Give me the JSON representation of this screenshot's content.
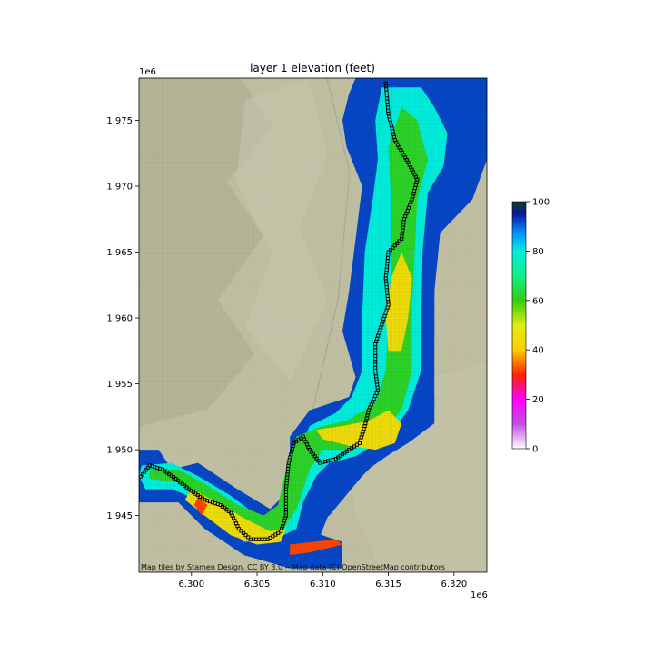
{
  "chart_data": {
    "type": "heatmap",
    "title": "layer 1 elevation (feet)",
    "x_offset_label": "1e6",
    "y_offset_label": "1e6",
    "xlim": [
      6.296,
      6.3225
    ],
    "ylim": [
      1.9407,
      1.9782
    ],
    "x_ticks": [
      {
        "value": 6.3,
        "label": "6.300"
      },
      {
        "value": 6.305,
        "label": "6.305"
      },
      {
        "value": 6.31,
        "label": "6.310"
      },
      {
        "value": 6.315,
        "label": "6.315"
      },
      {
        "value": 6.32,
        "label": "6.320"
      }
    ],
    "y_ticks": [
      {
        "value": 1.945,
        "label": "1.945"
      },
      {
        "value": 1.95,
        "label": "1.950"
      },
      {
        "value": 1.955,
        "label": "1.955"
      },
      {
        "value": 1.96,
        "label": "1.960"
      },
      {
        "value": 1.965,
        "label": "1.965"
      },
      {
        "value": 1.97,
        "label": "1.970"
      },
      {
        "value": 1.975,
        "label": "1.975"
      }
    ],
    "colorbar": {
      "range": [
        0,
        100
      ],
      "ticks": [
        {
          "value": 0,
          "label": "0"
        },
        {
          "value": 20,
          "label": "20"
        },
        {
          "value": 40,
          "label": "40"
        },
        {
          "value": 60,
          "label": "60"
        },
        {
          "value": 80,
          "label": "80"
        },
        {
          "value": 100,
          "label": "100"
        }
      ],
      "colormap_stops": [
        [
          0,
          "#ffffff"
        ],
        [
          10,
          "#c24fe6"
        ],
        [
          20,
          "#ff00ff"
        ],
        [
          30,
          "#ff2200"
        ],
        [
          40,
          "#ffcc00"
        ],
        [
          50,
          "#ddee11"
        ],
        [
          60,
          "#33cc11"
        ],
        [
          70,
          "#11ee88"
        ],
        [
          80,
          "#00eedd"
        ],
        [
          88,
          "#0088ff"
        ],
        [
          95,
          "#0b169e"
        ],
        [
          100,
          "#0b3d22"
        ]
      ]
    },
    "elevation_regions": [
      {
        "value": 92,
        "polygon": [
          [
            6.3134,
            1.9782
          ],
          [
            6.3171,
            1.9782
          ],
          [
            6.3171,
            1.9765
          ],
          [
            6.3208,
            1.9765
          ],
          [
            6.3208,
            1.974
          ],
          [
            6.3214,
            1.972
          ],
          [
            6.3195,
            1.971
          ],
          [
            6.3178,
            1.969
          ],
          [
            6.3185,
            1.968
          ],
          [
            6.3185,
            1.964
          ],
          [
            6.3178,
            1.963
          ],
          [
            6.3178,
            1.961
          ],
          [
            6.3185,
            1.954
          ],
          [
            6.3185,
            1.952
          ],
          [
            6.3165,
            1.9505
          ],
          [
            6.314,
            1.949
          ],
          [
            6.311,
            1.9485
          ],
          [
            6.31,
            1.947
          ],
          [
            6.3085,
            1.9455
          ],
          [
            6.3085,
            1.944
          ],
          [
            6.306,
            1.9432
          ],
          [
            6.304,
            1.943
          ],
          [
            6.301,
            1.9455
          ],
          [
            6.299,
            1.947
          ],
          [
            6.2975,
            1.9495
          ],
          [
            6.296,
            1.9495
          ],
          [
            6.296,
            1.946
          ],
          [
            6.299,
            1.946
          ],
          [
            6.301,
            1.944
          ],
          [
            6.304,
            1.942
          ],
          [
            6.3075,
            1.941
          ],
          [
            6.3115,
            1.941
          ],
          [
            6.3115,
            1.943
          ],
          [
            6.3085,
            1.944
          ],
          [
            6.3105,
            1.945
          ],
          [
            6.313,
            1.948
          ],
          [
            6.315,
            1.95
          ],
          [
            6.3175,
            1.9525
          ],
          [
            6.3185,
            1.9585
          ],
          [
            6.3185,
            1.966
          ],
          [
            6.3214,
            1.969
          ],
          [
            6.3225,
            1.972
          ],
          [
            6.3225,
            1.9782
          ]
        ]
      },
      {
        "value": 92,
        "polygon": [
          [
            6.3125,
            1.9782
          ],
          [
            6.321,
            1.9782
          ],
          [
            6.3225,
            1.974
          ],
          [
            6.3218,
            1.9712
          ],
          [
            6.3192,
            1.969
          ],
          [
            6.3185,
            1.962
          ],
          [
            6.3185,
            1.953
          ],
          [
            6.3163,
            1.9505
          ],
          [
            6.312,
            1.9475
          ],
          [
            6.3105,
            1.9452
          ],
          [
            6.309,
            1.9415
          ],
          [
            6.308,
            1.941
          ],
          [
            6.3065,
            1.943
          ],
          [
            6.3045,
            1.9432
          ],
          [
            6.3025,
            1.9445
          ],
          [
            6.3005,
            1.9465
          ],
          [
            6.299,
            1.9478
          ],
          [
            6.2965,
            1.9478
          ],
          [
            6.296,
            1.9468
          ],
          [
            6.296,
            1.95
          ],
          [
            6.2975,
            1.95
          ],
          [
            6.2985,
            1.9485
          ],
          [
            6.3005,
            1.949
          ],
          [
            6.3035,
            1.947
          ],
          [
            6.306,
            1.9455
          ],
          [
            6.3075,
            1.947
          ],
          [
            6.3075,
            1.951
          ],
          [
            6.309,
            1.953
          ],
          [
            6.312,
            1.954
          ],
          [
            6.3125,
            1.9555
          ],
          [
            6.3115,
            1.959
          ],
          [
            6.312,
            1.962
          ],
          [
            6.3125,
            1.966
          ],
          [
            6.313,
            1.97
          ],
          [
            6.3118,
            1.973
          ],
          [
            6.3115,
            1.975
          ],
          [
            6.312,
            1.977
          ]
        ]
      },
      {
        "value": 80,
        "polygon": [
          [
            6.3145,
            1.9775
          ],
          [
            6.3175,
            1.9775
          ],
          [
            6.3185,
            1.976
          ],
          [
            6.3195,
            1.974
          ],
          [
            6.3192,
            1.9715
          ],
          [
            6.318,
            1.9695
          ],
          [
            6.3176,
            1.965
          ],
          [
            6.3175,
            1.96
          ],
          [
            6.3175,
            1.956
          ],
          [
            6.3165,
            1.953
          ],
          [
            6.315,
            1.951
          ],
          [
            6.3125,
            1.9495
          ],
          [
            6.3105,
            1.949
          ],
          [
            6.3095,
            1.948
          ],
          [
            6.3085,
            1.946
          ],
          [
            6.308,
            1.944
          ],
          [
            6.306,
            1.943
          ],
          [
            6.304,
            1.9435
          ],
          [
            6.302,
            1.945
          ],
          [
            6.3005,
            1.9462
          ],
          [
            6.2985,
            1.947
          ],
          [
            6.2965,
            1.947
          ],
          [
            6.296,
            1.948
          ],
          [
            6.2962,
            1.9488
          ],
          [
            6.2985,
            1.949
          ],
          [
            6.3005,
            1.948
          ],
          [
            6.303,
            1.9465
          ],
          [
            6.305,
            1.945
          ],
          [
            6.307,
            1.9445
          ],
          [
            6.3078,
            1.946
          ],
          [
            6.3082,
            1.95
          ],
          [
            6.309,
            1.9518
          ],
          [
            6.311,
            1.9528
          ],
          [
            6.3122,
            1.954
          ],
          [
            6.313,
            1.956
          ],
          [
            6.313,
            1.96
          ],
          [
            6.3132,
            1.965
          ],
          [
            6.3138,
            1.969
          ],
          [
            6.3142,
            1.972
          ],
          [
            6.314,
            1.975
          ]
        ]
      },
      {
        "value": 62,
        "polygon": [
          [
            6.316,
            1.976
          ],
          [
            6.3172,
            1.975
          ],
          [
            6.318,
            1.972
          ],
          [
            6.3172,
            1.969
          ],
          [
            6.317,
            1.965
          ],
          [
            6.3168,
            1.961
          ],
          [
            6.3168,
            1.956
          ],
          [
            6.316,
            1.953
          ],
          [
            6.314,
            1.951
          ],
          [
            6.312,
            1.95
          ],
          [
            6.31,
            1.95
          ],
          [
            6.309,
            1.9485
          ],
          [
            6.308,
            1.9455
          ],
          [
            6.307,
            1.944
          ],
          [
            6.3055,
            1.9435
          ],
          [
            6.3035,
            1.9445
          ],
          [
            6.3015,
            1.946
          ],
          [
            6.299,
            1.9475
          ],
          [
            6.2968,
            1.9478
          ],
          [
            6.2968,
            1.9485
          ],
          [
            6.299,
            1.9485
          ],
          [
            6.3012,
            1.9473
          ],
          [
            6.3035,
            1.9458
          ],
          [
            6.3055,
            1.945
          ],
          [
            6.3066,
            1.9458
          ],
          [
            6.3072,
            1.9485
          ],
          [
            6.308,
            1.951
          ],
          [
            6.31,
            1.9518
          ],
          [
            6.3118,
            1.9522
          ],
          [
            6.314,
            1.9535
          ],
          [
            6.3148,
            1.956
          ],
          [
            6.315,
            1.96
          ],
          [
            6.3152,
            1.964
          ],
          [
            6.3152,
            1.969
          ],
          [
            6.315,
            1.973
          ]
        ]
      },
      {
        "value": 45,
        "polygon": [
          [
            6.316,
            1.965
          ],
          [
            6.3168,
            1.963
          ],
          [
            6.3165,
            1.96
          ],
          [
            6.316,
            1.9575
          ],
          [
            6.315,
            1.9575
          ],
          [
            6.3148,
            1.96
          ],
          [
            6.3152,
            1.963
          ]
        ]
      },
      {
        "value": 45,
        "polygon": [
          [
            6.315,
            1.953
          ],
          [
            6.316,
            1.952
          ],
          [
            6.3155,
            1.9505
          ],
          [
            6.314,
            1.95
          ],
          [
            6.312,
            1.9503
          ],
          [
            6.31,
            1.9508
          ],
          [
            6.3095,
            1.9515
          ],
          [
            6.3115,
            1.9518
          ],
          [
            6.3135,
            1.9522
          ]
        ]
      },
      {
        "value": 45,
        "polygon": [
          [
            6.3,
            1.947
          ],
          [
            6.302,
            1.946
          ],
          [
            6.304,
            1.9448
          ],
          [
            6.306,
            1.9438
          ],
          [
            6.3072,
            1.944
          ],
          [
            6.3068,
            1.943
          ],
          [
            6.305,
            1.9428
          ],
          [
            6.303,
            1.9435
          ],
          [
            6.301,
            1.945
          ],
          [
            6.2995,
            1.9462
          ]
        ]
      },
      {
        "value": 32,
        "polygon": [
          [
            6.3075,
            1.9428
          ],
          [
            6.311,
            1.9432
          ],
          [
            6.3115,
            1.9428
          ],
          [
            6.309,
            1.9422
          ],
          [
            6.3075,
            1.942
          ]
        ]
      },
      {
        "value": 32,
        "polygon": [
          [
            6.3005,
            1.9464
          ],
          [
            6.3012,
            1.9458
          ],
          [
            6.3008,
            1.945
          ],
          [
            6.3002,
            1.9458
          ]
        ]
      }
    ],
    "river_path": [
      [
        6.3148,
        1.9778
      ],
      [
        6.315,
        1.9755
      ],
      [
        6.3155,
        1.9735
      ],
      [
        6.3165,
        1.9718
      ],
      [
        6.3172,
        1.9705
      ],
      [
        6.3168,
        1.969
      ],
      [
        6.3162,
        1.9675
      ],
      [
        6.316,
        1.966
      ],
      [
        6.315,
        1.965
      ],
      [
        6.3148,
        1.963
      ],
      [
        6.315,
        1.961
      ],
      [
        6.3145,
        1.9595
      ],
      [
        6.314,
        1.958
      ],
      [
        6.314,
        1.956
      ],
      [
        6.3142,
        1.9545
      ],
      [
        6.3135,
        1.953
      ],
      [
        6.3132,
        1.9518
      ],
      [
        6.3128,
        1.9505
      ],
      [
        6.312,
        1.95
      ],
      [
        6.311,
        1.9493
      ],
      [
        6.3098,
        1.949
      ],
      [
        6.309,
        1.95
      ],
      [
        6.3085,
        1.951
      ],
      [
        6.3078,
        1.9505
      ],
      [
        6.3074,
        1.949
      ],
      [
        6.3072,
        1.947
      ],
      [
        6.3072,
        1.945
      ],
      [
        6.3068,
        1.9438
      ],
      [
        6.3058,
        1.9432
      ],
      [
        6.3045,
        1.9432
      ],
      [
        6.3036,
        1.944
      ],
      [
        6.303,
        1.9452
      ],
      [
        6.3022,
        1.9458
      ],
      [
        6.301,
        1.9462
      ],
      [
        6.2998,
        1.947
      ],
      [
        6.2988,
        1.9478
      ],
      [
        6.2978,
        1.9485
      ],
      [
        6.2968,
        1.9488
      ],
      [
        6.296,
        1.9478
      ]
    ],
    "attribution": "Map tiles by Stamen Design, CC BY 3.0 -- Map data (C) OpenStreetMap contributors"
  }
}
